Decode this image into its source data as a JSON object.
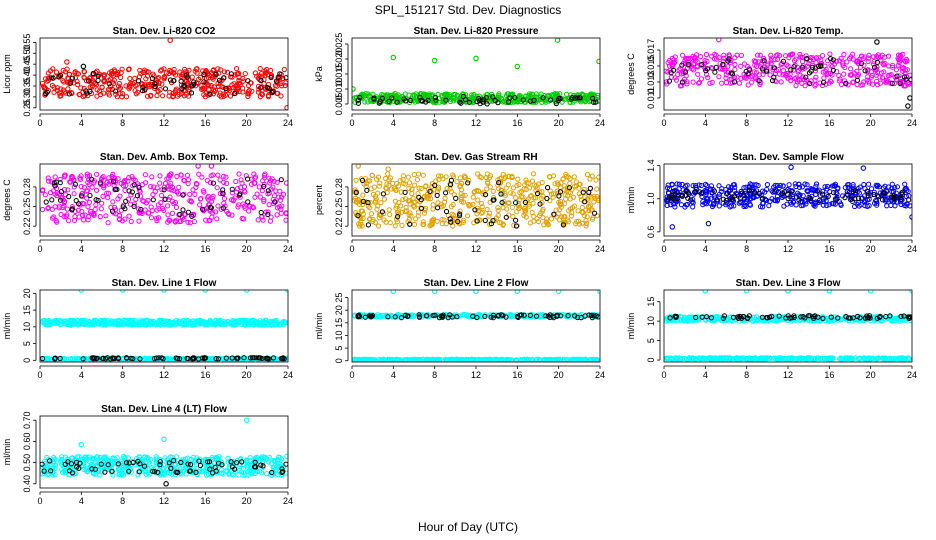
{
  "figure": {
    "title": "SPL_151217  Std. Dev. Diagnostics",
    "xlabel": "Hour of Day (UTC)"
  },
  "colors": {
    "red": "#ff0000",
    "green": "#00cc00",
    "magenta": "#ff00ff",
    "orange": "#e0a000",
    "blue": "#0000ff",
    "cyan": "#00ffff",
    "black": "#000000"
  },
  "chart_data": [
    {
      "id": "co2",
      "type": "scatter",
      "title": "Stan. Dev. Li-820 CO2",
      "ylabel": "Licor ppm",
      "xlim": [
        0,
        24
      ],
      "xticks": [
        0,
        4,
        8,
        12,
        16,
        20,
        24
      ],
      "ylim": [
        0.24,
        0.57
      ],
      "yticks": [
        0.25,
        0.3,
        0.35,
        0.4,
        0.45,
        0.5,
        0.55
      ],
      "ytick_labels": [
        "0.25",
        "0.30",
        "0.35",
        "0.40",
        "0.45",
        "0.50",
        "0.55"
      ],
      "series": [
        {
          "color": "red",
          "band": [
            0.3,
            0.43
          ],
          "density": 420
        },
        {
          "color": "black",
          "band": [
            0.31,
            0.41
          ],
          "density": 60
        }
      ],
      "outliers": [
        {
          "x": 12.6,
          "y": 0.56,
          "color": "red"
        },
        {
          "x": 4.2,
          "y": 0.44,
          "color": "black"
        },
        {
          "x": 2.6,
          "y": 0.46,
          "color": "red"
        },
        {
          "x": 23.9,
          "y": 0.25,
          "color": "red"
        }
      ]
    },
    {
      "id": "pressure",
      "type": "scatter",
      "title": "Stan. Dev. Li-820 Pressure",
      "ylabel": "kPa",
      "xlim": [
        0,
        24
      ],
      "xticks": [
        0,
        4,
        8,
        12,
        16,
        20,
        24
      ],
      "ylim": [
        0.003,
        0.027
      ],
      "yticks": [
        0.005,
        0.01,
        0.015,
        0.02,
        0.025
      ],
      "ytick_labels": [
        "0.005",
        "0.010",
        "0.015",
        "0.020",
        "0.025"
      ],
      "series": [
        {
          "color": "green",
          "band": [
            0.0055,
            0.0085
          ],
          "density": 420
        },
        {
          "color": "black",
          "band": [
            0.005,
            0.0075
          ],
          "density": 60
        }
      ],
      "outliers": [
        {
          "x": 4.0,
          "y": 0.0205,
          "color": "green"
        },
        {
          "x": 8.0,
          "y": 0.0195,
          "color": "green"
        },
        {
          "x": 12.0,
          "y": 0.0202,
          "color": "green"
        },
        {
          "x": 16.0,
          "y": 0.0175,
          "color": "green"
        },
        {
          "x": 19.9,
          "y": 0.0263,
          "color": "green"
        },
        {
          "x": 23.9,
          "y": 0.0192,
          "color": "green"
        },
        {
          "x": 0.1,
          "y": 0.01,
          "color": "green"
        }
      ]
    },
    {
      "id": "temp",
      "type": "scatter",
      "title": "Stan. Dev. Li-820 Temp.",
      "ylabel": "degrees C",
      "xlim": [
        0,
        24
      ],
      "xticks": [
        0,
        4,
        8,
        12,
        16,
        20,
        24
      ],
      "ylim": [
        0.0095,
        0.0185
      ],
      "yticks": [
        0.011,
        0.013,
        0.015,
        0.017
      ],
      "ytick_labels": [
        "0.011",
        "0.013",
        "0.015",
        "0.017"
      ],
      "series": [
        {
          "color": "magenta",
          "band": [
            0.0125,
            0.0165
          ],
          "density": 420
        },
        {
          "color": "black",
          "band": [
            0.0128,
            0.016
          ],
          "density": 60
        }
      ],
      "outliers": [
        {
          "x": 5.3,
          "y": 0.0183,
          "color": "magenta"
        },
        {
          "x": 20.6,
          "y": 0.018,
          "color": "black"
        },
        {
          "x": 23.6,
          "y": 0.01,
          "color": "black"
        },
        {
          "x": 23.8,
          "y": 0.011,
          "color": "black"
        }
      ]
    },
    {
      "id": "ambbox",
      "type": "scatter",
      "title": "Stan. Dev. Amb. Box Temp.",
      "ylabel": "degrees C",
      "xlim": [
        0,
        24
      ],
      "xticks": [
        0,
        4,
        8,
        12,
        16,
        20,
        24
      ],
      "ylim": [
        0.205,
        0.315
      ],
      "yticks": [
        0.22,
        0.25,
        0.28
      ],
      "ytick_labels": [
        "0.22",
        "0.25",
        "0.28"
      ],
      "series": [
        {
          "color": "magenta",
          "band": [
            0.225,
            0.3
          ],
          "density": 420
        },
        {
          "color": "black",
          "band": [
            0.235,
            0.295
          ],
          "density": 60
        }
      ],
      "outliers": [
        {
          "x": 15.3,
          "y": 0.312,
          "color": "magenta"
        },
        {
          "x": 16.6,
          "y": 0.312,
          "color": "magenta"
        }
      ]
    },
    {
      "id": "rh",
      "type": "scatter",
      "title": "Stan. Dev. Gas Stream RH",
      "ylabel": "percent",
      "xlim": [
        0,
        24
      ],
      "xticks": [
        0,
        4,
        8,
        12,
        16,
        20,
        24
      ],
      "ylim": [
        0.205,
        0.315
      ],
      "yticks": [
        0.22,
        0.25,
        0.28
      ],
      "ytick_labels": [
        "0.22",
        "0.25",
        "0.28"
      ],
      "series": [
        {
          "color": "orange",
          "band": [
            0.22,
            0.3
          ],
          "density": 520
        },
        {
          "color": "black",
          "band": [
            0.22,
            0.29
          ],
          "density": 60
        }
      ],
      "outliers": [
        {
          "x": 0.6,
          "y": 0.312,
          "color": "orange"
        },
        {
          "x": 3.5,
          "y": 0.307,
          "color": "orange"
        }
      ]
    },
    {
      "id": "sampleflow",
      "type": "scatter",
      "title": "Stan. Dev. Sample Flow",
      "ylabel": "ml/min",
      "xlim": [
        0,
        24
      ],
      "xticks": [
        0,
        4,
        8,
        12,
        16,
        20,
        24
      ],
      "ylim": [
        0.55,
        1.42
      ],
      "yticks": [
        0.6,
        1.0,
        1.4
      ],
      "ytick_labels": [
        "0.6",
        "1.0",
        "1.4"
      ],
      "series": [
        {
          "color": "blue",
          "band": [
            0.9,
            1.18
          ],
          "density": 420
        },
        {
          "color": "black",
          "band": [
            0.98,
            1.1
          ],
          "density": 70
        }
      ],
      "outliers": [
        {
          "x": 0.8,
          "y": 0.66,
          "color": "blue"
        },
        {
          "x": 4.3,
          "y": 0.7,
          "color": "blue"
        },
        {
          "x": 12.3,
          "y": 1.38,
          "color": "blue"
        },
        {
          "x": 19.3,
          "y": 1.37,
          "color": "blue"
        },
        {
          "x": 24.0,
          "y": 0.78,
          "color": "blue"
        }
      ]
    },
    {
      "id": "line1",
      "type": "scatter",
      "title": "Stan. Dev. Line 1 Flow",
      "ylabel": "ml/min",
      "xlim": [
        0,
        24
      ],
      "xticks": [
        0,
        4,
        8,
        12,
        16,
        20,
        24
      ],
      "ylim": [
        -0.5,
        21
      ],
      "yticks": [
        0,
        5,
        10,
        15,
        20
      ],
      "ytick_labels": [
        "0",
        "5",
        "10",
        "15",
        "20"
      ],
      "series": [
        {
          "color": "cyan",
          "band": [
            10.5,
            12.0
          ],
          "density": 520
        },
        {
          "color": "cyan",
          "band": [
            0.2,
            0.6
          ],
          "density": 300
        },
        {
          "color": "black",
          "band": [
            0.4,
            0.8
          ],
          "density": 70
        }
      ],
      "outliers": [
        {
          "x": 4.0,
          "y": 21.0,
          "color": "cyan"
        },
        {
          "x": 8.0,
          "y": 21.0,
          "color": "cyan"
        },
        {
          "x": 12.0,
          "y": 21.0,
          "color": "cyan"
        },
        {
          "x": 16.0,
          "y": 21.0,
          "color": "cyan"
        },
        {
          "x": 20.0,
          "y": 21.0,
          "color": "cyan"
        },
        {
          "x": 24.0,
          "y": 21.0,
          "color": "cyan"
        }
      ]
    },
    {
      "id": "line2",
      "type": "scatter",
      "title": "Stan. Dev. Line 2 Flow",
      "ylabel": "ml/min",
      "xlim": [
        0,
        24
      ],
      "xticks": [
        0,
        4,
        8,
        12,
        16,
        20,
        24
      ],
      "ylim": [
        -0.5,
        28
      ],
      "yticks": [
        0,
        5,
        10,
        15,
        20,
        25
      ],
      "ytick_labels": [
        "0",
        "5",
        "10",
        "15",
        "20",
        "25"
      ],
      "series": [
        {
          "color": "cyan",
          "band": [
            17.3,
            18.3
          ],
          "density": 260
        },
        {
          "color": "cyan",
          "band": [
            0.2,
            0.6
          ],
          "density": 300
        },
        {
          "color": "black",
          "band": [
            17.0,
            18.2
          ],
          "density": 70
        }
      ],
      "outliers": [
        {
          "x": 4.0,
          "y": 27.5,
          "color": "cyan"
        },
        {
          "x": 8.0,
          "y": 27.5,
          "color": "cyan"
        },
        {
          "x": 12.0,
          "y": 27.5,
          "color": "cyan"
        },
        {
          "x": 16.0,
          "y": 27.5,
          "color": "cyan"
        },
        {
          "x": 20.0,
          "y": 27.5,
          "color": "cyan"
        },
        {
          "x": 24.0,
          "y": 27.5,
          "color": "cyan"
        }
      ]
    },
    {
      "id": "line3",
      "type": "scatter",
      "title": "Stan. Dev. Line 3 Flow",
      "ylabel": "ml/min",
      "xlim": [
        0,
        24
      ],
      "xticks": [
        0,
        4,
        8,
        12,
        16,
        20,
        24
      ],
      "ylim": [
        -0.5,
        18
      ],
      "yticks": [
        0,
        5,
        10,
        15
      ],
      "ytick_labels": [
        "0",
        "5",
        "10",
        "15"
      ],
      "series": [
        {
          "color": "cyan",
          "band": [
            10.0,
            11.2
          ],
          "density": 360
        },
        {
          "color": "cyan",
          "band": [
            0.2,
            0.6
          ],
          "density": 300
        },
        {
          "color": "black",
          "band": [
            10.7,
            11.4
          ],
          "density": 70
        }
      ],
      "outliers": [
        {
          "x": 4.0,
          "y": 17.8,
          "color": "cyan"
        },
        {
          "x": 8.0,
          "y": 17.8,
          "color": "cyan"
        },
        {
          "x": 12.0,
          "y": 17.8,
          "color": "cyan"
        },
        {
          "x": 16.0,
          "y": 17.8,
          "color": "cyan"
        },
        {
          "x": 20.0,
          "y": 17.8,
          "color": "cyan"
        },
        {
          "x": 24.0,
          "y": 17.8,
          "color": "cyan"
        }
      ]
    },
    {
      "id": "line4",
      "type": "scatter",
      "title": "Stan. Dev. Line 4 (LT) Flow",
      "ylabel": "ml/min",
      "xlim": [
        0,
        24
      ],
      "xticks": [
        0,
        4,
        8,
        12,
        16,
        20,
        24
      ],
      "ylim": [
        0.38,
        0.72
      ],
      "yticks": [
        0.4,
        0.5,
        0.6,
        0.7
      ],
      "ytick_labels": [
        "0.40",
        "0.50",
        "0.60",
        "0.70"
      ],
      "series": [
        {
          "color": "cyan",
          "band": [
            0.44,
            0.53
          ],
          "density": 520
        },
        {
          "color": "black",
          "band": [
            0.45,
            0.51
          ],
          "density": 70
        }
      ],
      "outliers": [
        {
          "x": 4.0,
          "y": 0.585,
          "color": "cyan"
        },
        {
          "x": 12.0,
          "y": 0.61,
          "color": "cyan"
        },
        {
          "x": 20.0,
          "y": 0.7,
          "color": "cyan"
        },
        {
          "x": 12.2,
          "y": 0.4,
          "color": "black"
        }
      ]
    }
  ]
}
